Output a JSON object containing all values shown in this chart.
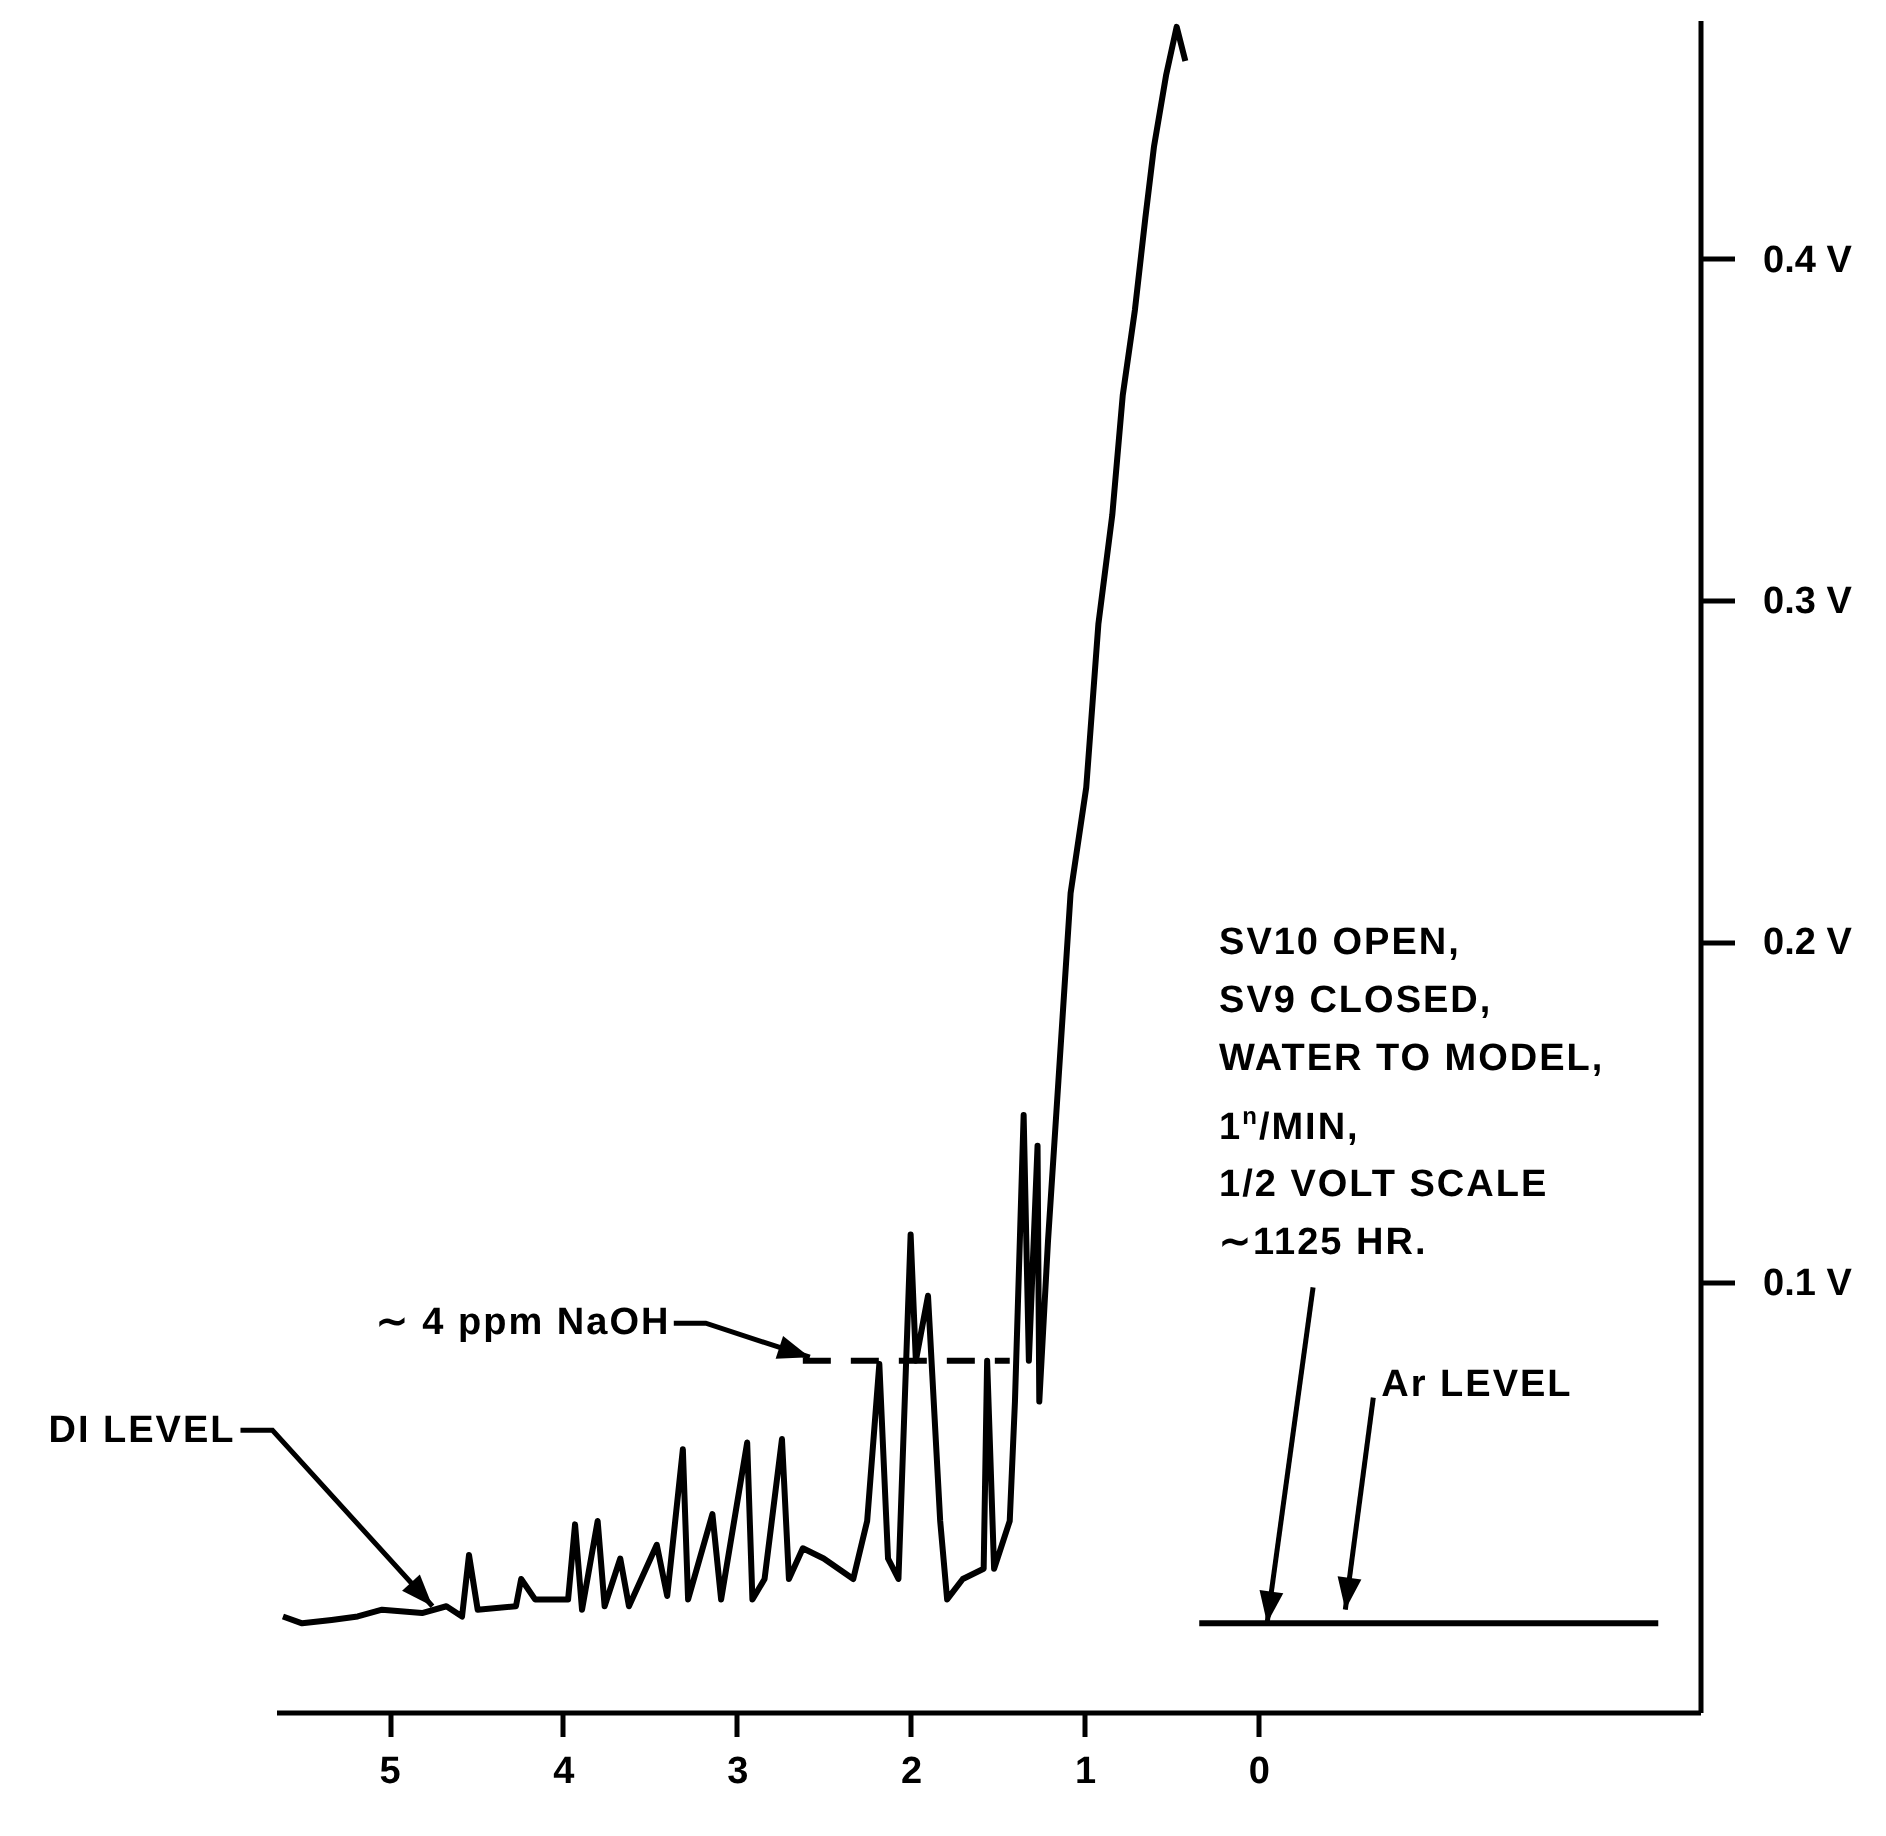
{
  "chart_data": {
    "type": "line",
    "xlim": [
      5.65,
      -2.54
    ],
    "ylim": [
      -0.026,
      0.47
    ],
    "xticks": [
      5,
      4,
      3,
      2,
      1,
      0
    ],
    "yticks": [
      {
        "value": 0.1,
        "label": "0.1 V"
      },
      {
        "value": 0.2,
        "label": "0.2 V"
      },
      {
        "value": 0.3,
        "label": "0.3 V"
      },
      {
        "value": 0.4,
        "label": "0.4 V"
      }
    ],
    "grid": false,
    "marker": "none",
    "series": [
      {
        "color": "#000000",
        "line_style": "solid",
        "x": [
          5.61,
          5.5,
          5.33,
          5.18,
          5.04,
          4.81,
          4.67,
          4.58,
          4.54,
          4.49,
          4.27,
          4.24,
          4.16,
          3.97,
          3.93,
          3.89,
          3.8,
          3.76,
          3.67,
          3.62,
          3.46,
          3.4,
          3.31,
          3.28,
          3.14,
          3.09,
          2.94,
          2.91,
          2.84,
          2.74,
          2.7,
          2.62,
          2.5,
          2.33,
          2.25,
          2.18,
          2.13,
          2.07,
          2.0,
          1.97,
          1.9,
          1.83,
          1.79,
          1.7,
          1.58,
          1.56,
          1.52,
          1.43,
          1.4,
          1.35,
          1.32,
          1.27,
          1.26,
          1.21,
          1.15,
          1.08,
          0.99,
          0.92,
          0.84,
          0.78,
          0.71,
          0.65,
          0.6,
          0.53,
          0.47,
          0.42
        ],
        "values": [
          0.002,
          0,
          0.001,
          0.002,
          0.004,
          0.003,
          0.005,
          0.002,
          0.02,
          0.004,
          0.005,
          0.013,
          0.007,
          0.007,
          0.029,
          0.004,
          0.03,
          0.005,
          0.019,
          0.005,
          0.023,
          0.008,
          0.051,
          0.007,
          0.032,
          0.007,
          0.053,
          0.007,
          0.013,
          0.054,
          0.013,
          0.022,
          0.019,
          0.013,
          0.03,
          0.076,
          0.019,
          0.013,
          0.114,
          0.077,
          0.096,
          0.03,
          0.007,
          0.013,
          0.016,
          0.077,
          0.016,
          0.03,
          0.065,
          0.149,
          0.077,
          0.14,
          0.065,
          0.112,
          0.159,
          0.214,
          0.245,
          0.293,
          0.325,
          0.36,
          0.385,
          0.412,
          0.433,
          0.454,
          0.468,
          0.458
        ]
      },
      {
        "color": "#000000",
        "line_style": "dashed",
        "x": [
          2.62,
          1.43
        ],
        "values": [
          0.077,
          0.077
        ]
      },
      {
        "color": "#000000",
        "line_style": "solid",
        "x": [
          0.34,
          -2.3
        ],
        "values": [
          0,
          0
        ]
      }
    ],
    "annotations": [
      {
        "text": "∼ 4 ppm NaOH",
        "x": 2.58,
        "y": 0.078
      },
      {
        "text": "DI LEVEL",
        "x": 4.75,
        "y": 0.005
      },
      {
        "text": "Ar LEVEL",
        "x": -0.5,
        "y": 0.004
      },
      {
        "text": "SV10 OPEN,\nSV9 CLOSED,\nWATER TO MODEL,\n1$^{n}$/MIN,\n1/2 VOLT SCALE\n∼1125 HR.",
        "x": -0.05,
        "y": 0
      }
    ]
  }
}
